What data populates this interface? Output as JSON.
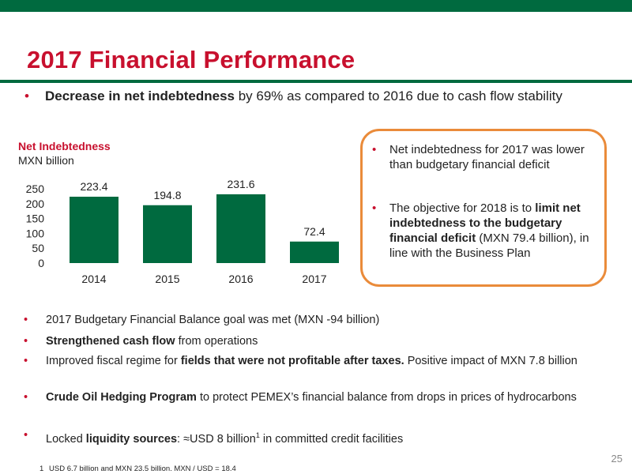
{
  "slide": {
    "title": "2017 Financial Performance",
    "page_number": "25",
    "accent_color": "#c8102e",
    "brand_color": "#006a3f",
    "callout_border_color": "#ea8b3a"
  },
  "intro_bullet": {
    "bold": "Decrease in net indebtedness",
    "text": " by 69% as compared to 2016 due to cash flow stability"
  },
  "chart_heading": "Net Indebtedness",
  "chart_unit": "MXN billion",
  "chart_data": {
    "type": "bar",
    "categories": [
      "2014",
      "2015",
      "2016",
      "2017"
    ],
    "values": [
      223.4,
      194.8,
      231.6,
      72.4
    ],
    "data_labels": [
      "223.4",
      "194.8",
      "231.6",
      "72.4"
    ],
    "yticks": [
      "0",
      "50",
      "100",
      "150",
      "200",
      "250"
    ],
    "ylim": [
      0,
      250
    ],
    "bar_color": "#006a3f",
    "grid": false
  },
  "callout": {
    "b1": "Net indebtedness for 2017 was lower than budgetary financial deficit",
    "b2_pre": "The objective for 2018 is to ",
    "b2_bold": "limit net indebtedness to the budgetary financial deficit",
    "b2_post": " (MXN 79.4 billion), in line with the Business Plan"
  },
  "bullets": {
    "l1": "2017 Budgetary Financial Balance goal was met (MXN -94 billion)",
    "l2_bold": "Strengthened cash flow",
    "l2_text": " from operations",
    "l3_pre": "Improved fiscal regime for ",
    "l3_bold": "fields that were not profitable after taxes.",
    "l3_post": " Positive impact of MXN 7.8 billion",
    "l4_bold": "Crude Oil Hedging Program",
    "l4_text": " to protect PEMEX’s financial balance from drops in prices of hydrocarbons",
    "l5_pre": "Locked ",
    "l5_bold": "liquidity sources",
    "l5_mid": ": ≈USD 8 billion",
    "l5_sup": "1",
    "l5_post": " in committed credit facilities"
  },
  "footnote": {
    "mark": "1",
    "text": "USD 6.7 billion and MXN 23.5 billion. MXN / USD = 18.4"
  },
  "bullet_glyph": "•"
}
